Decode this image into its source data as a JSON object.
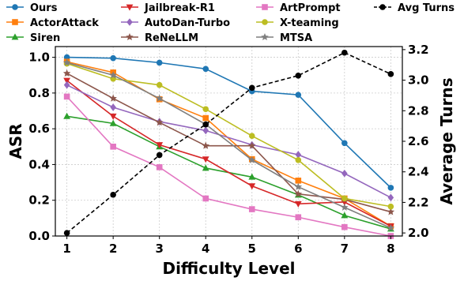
{
  "chart_data": {
    "type": "line",
    "xlabel": "Difficulty Level",
    "ylabel": "ASR",
    "y2label": "Average Turns",
    "x": [
      1,
      2,
      3,
      4,
      5,
      6,
      7,
      8
    ],
    "xlim": [
      0.75,
      8.25
    ],
    "ylim": [
      0,
      1.06
    ],
    "y2lim": [
      1.98,
      3.22
    ],
    "yticks": [
      "0.0",
      "0.2",
      "0.4",
      "0.6",
      "0.8",
      "1.0"
    ],
    "y2ticks": [
      "2.0",
      "2.2",
      "2.4",
      "2.6",
      "2.8",
      "3.0",
      "3.2"
    ],
    "grid": true,
    "legend_position": "top",
    "series": [
      {
        "name": "Ours",
        "color": "#1f77b4",
        "marker": "circle",
        "values": [
          1.0,
          0.995,
          0.97,
          0.935,
          0.81,
          0.79,
          0.52,
          0.27
        ]
      },
      {
        "name": "ActorAttack",
        "color": "#ff7f0e",
        "marker": "square",
        "values": [
          0.975,
          0.915,
          0.765,
          0.66,
          0.43,
          0.31,
          0.21,
          0.055
        ]
      },
      {
        "name": "Siren",
        "color": "#2ca02c",
        "marker": "triangle-up",
        "values": [
          0.67,
          0.63,
          0.5,
          0.38,
          0.33,
          0.23,
          0.115,
          0.04
        ]
      },
      {
        "name": "Jailbreak-R1",
        "color": "#d62728",
        "marker": "triangle-down",
        "values": [
          0.87,
          0.67,
          0.51,
          0.43,
          0.28,
          0.18,
          0.19,
          0.055
        ]
      },
      {
        "name": "AutoDan-Turbo",
        "color": "#9467bd",
        "marker": "diamond",
        "values": [
          0.845,
          0.72,
          0.64,
          0.59,
          0.51,
          0.455,
          0.35,
          0.215
        ]
      },
      {
        "name": "ReNeLLM",
        "color": "#8c564b",
        "marker": "star",
        "values": [
          0.91,
          0.77,
          0.635,
          0.505,
          0.505,
          0.235,
          0.205,
          0.135
        ]
      },
      {
        "name": "ArtPrompt",
        "color": "#e377c2",
        "marker": "square",
        "values": [
          0.78,
          0.5,
          0.385,
          0.21,
          0.15,
          0.105,
          0.05,
          0.0
        ]
      },
      {
        "name": "X-teaming",
        "color": "#bcbd22",
        "marker": "circle",
        "values": [
          0.965,
          0.88,
          0.845,
          0.71,
          0.56,
          0.425,
          0.21,
          0.165
        ]
      },
      {
        "name": "MTSA",
        "color": "#7f7f7f",
        "marker": "star",
        "values": [
          0.97,
          0.9,
          0.77,
          0.625,
          0.425,
          0.275,
          0.16,
          0.045
        ]
      }
    ],
    "secondary_series": {
      "name": "Avg Turns",
      "color": "#000000",
      "marker": "circle",
      "dashed": true,
      "values": [
        2.0,
        2.25,
        2.51,
        2.71,
        2.95,
        3.03,
        3.18,
        3.04
      ]
    }
  }
}
